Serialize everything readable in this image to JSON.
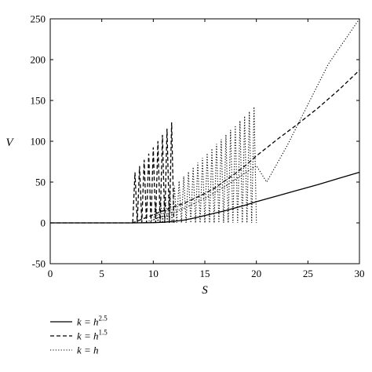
{
  "chart_data": {
    "type": "line",
    "xlabel": "S",
    "ylabel": "V",
    "xlim": [
      0,
      30
    ],
    "ylim": [
      -50,
      250
    ],
    "xticks": [
      0,
      5,
      10,
      15,
      20,
      25,
      30
    ],
    "yticks": [
      -50,
      0,
      50,
      100,
      150,
      200,
      250
    ],
    "grid": false,
    "legend_position": "bottom-left, below plot",
    "series": [
      {
        "name": "k = h^2.5",
        "label_base": "k = h",
        "label_exp": "2.5",
        "style": "solid",
        "x": [
          0,
          8,
          10,
          11,
          12,
          13,
          14,
          15,
          16,
          17,
          18,
          19,
          20,
          22,
          24,
          26,
          28,
          30
        ],
        "y": [
          0,
          0,
          0.3,
          0.8,
          1.8,
          3.5,
          6,
          9,
          12,
          15,
          18.5,
          22,
          26,
          33,
          40,
          47,
          54.5,
          62
        ]
      },
      {
        "name": "k = h^1.5",
        "label_base": "k = h",
        "label_exp": "1.5",
        "style": "dashed",
        "x": [
          0,
          8,
          9,
          10,
          11,
          12,
          13,
          14,
          15,
          16,
          17,
          18,
          19,
          20,
          22,
          24,
          26,
          28,
          30
        ],
        "y": [
          0,
          0,
          5,
          10,
          15,
          20,
          24,
          30,
          36,
          43,
          52,
          61,
          71,
          82,
          102,
          121,
          141,
          163,
          187
        ],
        "oscillation": {
          "x_range": [
            8,
            12
          ],
          "y_peak_start": 58,
          "y_peak_end": 127,
          "y_low": 0
        }
      },
      {
        "name": "k = h",
        "label_base": "k = h",
        "label_exp": "",
        "style": "dotted",
        "x": [
          0,
          9,
          11,
          13,
          15,
          17,
          19,
          20,
          21,
          23,
          25,
          27,
          30
        ],
        "y": [
          0,
          0,
          8,
          18,
          30,
          45,
          62,
          70,
          50,
          95,
          145,
          195,
          250
        ],
        "oscillation": {
          "x_range": [
            10,
            20
          ],
          "y_peak_start": 20,
          "y_peak_end": 145,
          "y_low": 0
        }
      }
    ]
  }
}
